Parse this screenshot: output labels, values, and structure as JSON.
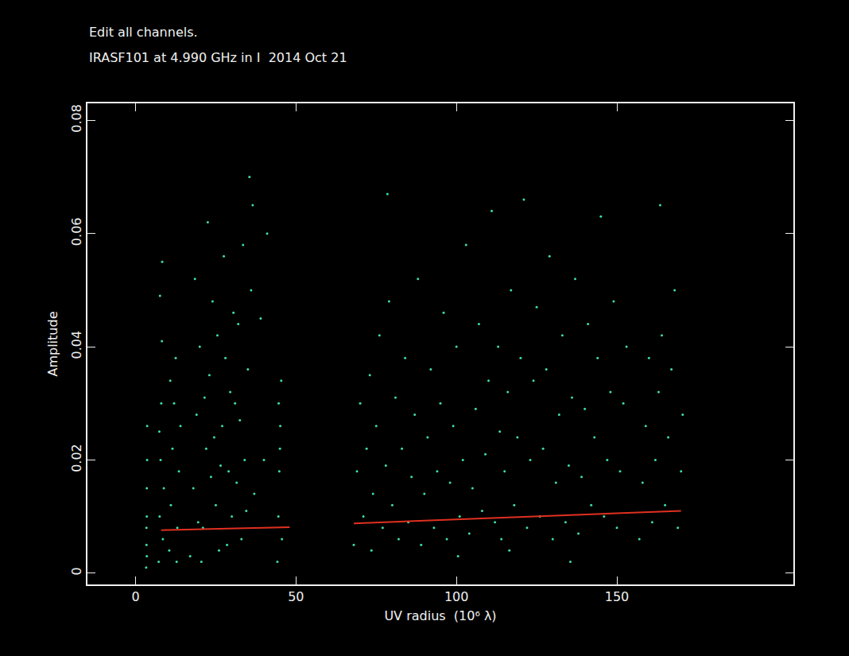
{
  "chart_data": {
    "type": "scatter",
    "title": "IRASF101 at 4.990 GHz in I  2014 Oct 21",
    "annotations": [
      "Edit all channels."
    ],
    "x_label": "UV radius  (10⁶ λ)",
    "y_label": "Amplitude",
    "xlim": [
      -15,
      205
    ],
    "ylim": [
      -0.002,
      0.083
    ],
    "xticks": [
      0,
      50,
      100,
      150
    ],
    "yticks": [
      0,
      0.02,
      0.04,
      0.06,
      0.08
    ],
    "grid": false,
    "series": [
      {
        "type": "scatter",
        "marker": "dot",
        "color": "#3fe0a8",
        "x": [
          3.3,
          3.4,
          3.5,
          3.5,
          3.6,
          3.6,
          3.4,
          3.5,
          7.2,
          7.5,
          7.8,
          8.0,
          8.2,
          8.5,
          7.6,
          8.8,
          7.4,
          8.3,
          10.5,
          11,
          11.5,
          12,
          12.5,
          13,
          13.5,
          14,
          10.8,
          12.8,
          17,
          18,
          19,
          20,
          21,
          22,
          23,
          24,
          25,
          26,
          27,
          28,
          29,
          30,
          31,
          32,
          33,
          34,
          35,
          36,
          37,
          18.5,
          22.5,
          27.5,
          33.5,
          35.5,
          36.5,
          20.5,
          24.5,
          29.5,
          31.5,
          25.5,
          19.5,
          23.5,
          28.5,
          34.5,
          30.5,
          21.5,
          26.5,
          32.5,
          40,
          41,
          39,
          44.2,
          44.5,
          44.8,
          45.1,
          45.4,
          45.6,
          45.0,
          44.6,
          68,
          69,
          70,
          71,
          72,
          73,
          73.5,
          74,
          75,
          76,
          77,
          78,
          79,
          80,
          81,
          82,
          83,
          84,
          85,
          86,
          87,
          88,
          89,
          90,
          91,
          92,
          93,
          94,
          95,
          96,
          97,
          98,
          99,
          100,
          101,
          102,
          103,
          104,
          105,
          106,
          107,
          108,
          109,
          110,
          111,
          112,
          113,
          113.5,
          114,
          115,
          116,
          117,
          118,
          119,
          120,
          121,
          122,
          123,
          124,
          125,
          126,
          127,
          128,
          129,
          130,
          131,
          132,
          133,
          134,
          135,
          136,
          137,
          138,
          139,
          140,
          141,
          142,
          143,
          144,
          145,
          146,
          147,
          148,
          149,
          150,
          151,
          152,
          153,
          157,
          158,
          159,
          160,
          161,
          162,
          163,
          164,
          165,
          166,
          167,
          168,
          169,
          170,
          163.5,
          170.5,
          135.5,
          100.5,
          116.5,
          78.5
        ],
        "values": [
          0.001,
          0.005,
          0.01,
          0.015,
          0.02,
          0.026,
          0.008,
          0.003,
          0.002,
          0.01,
          0.02,
          0.03,
          0.041,
          0.006,
          0.049,
          0.015,
          0.025,
          0.055,
          0.004,
          0.012,
          0.022,
          0.03,
          0.038,
          0.008,
          0.018,
          0.026,
          0.034,
          0.002,
          0.003,
          0.015,
          0.028,
          0.04,
          0.008,
          0.022,
          0.035,
          0.048,
          0.012,
          0.004,
          0.026,
          0.038,
          0.018,
          0.01,
          0.03,
          0.044,
          0.006,
          0.02,
          0.036,
          0.05,
          0.014,
          0.052,
          0.062,
          0.056,
          0.058,
          0.07,
          0.065,
          0.002,
          0.024,
          0.032,
          0.016,
          0.042,
          0.009,
          0.017,
          0.005,
          0.011,
          0.046,
          0.031,
          0.019,
          0.027,
          0.02,
          0.06,
          0.045,
          0.002,
          0.01,
          0.018,
          0.026,
          0.034,
          0.006,
          0.022,
          0.03,
          0.005,
          0.018,
          0.03,
          0.01,
          0.022,
          0.035,
          0.004,
          0.014,
          0.026,
          0.042,
          0.008,
          0.019,
          0.048,
          0.012,
          0.031,
          0.006,
          0.022,
          0.038,
          0.009,
          0.017,
          0.028,
          0.052,
          0.005,
          0.014,
          0.024,
          0.036,
          0.008,
          0.018,
          0.03,
          0.046,
          0.006,
          0.016,
          0.026,
          0.04,
          0.01,
          0.02,
          0.058,
          0.007,
          0.015,
          0.029,
          0.044,
          0.011,
          0.021,
          0.034,
          0.064,
          0.009,
          0.04,
          0.025,
          0.006,
          0.018,
          0.032,
          0.05,
          0.012,
          0.024,
          0.038,
          0.066,
          0.008,
          0.02,
          0.034,
          0.047,
          0.01,
          0.022,
          0.036,
          0.056,
          0.006,
          0.016,
          0.028,
          0.042,
          0.009,
          0.019,
          0.031,
          0.052,
          0.007,
          0.017,
          0.029,
          0.044,
          0.012,
          0.024,
          0.038,
          0.063,
          0.01,
          0.02,
          0.032,
          0.048,
          0.008,
          0.018,
          0.03,
          0.04,
          0.006,
          0.016,
          0.026,
          0.038,
          0.009,
          0.02,
          0.032,
          0.042,
          0.012,
          0.024,
          0.036,
          0.05,
          0.008,
          0.018,
          0.065,
          0.028,
          0.002,
          0.003,
          0.004,
          0.067
        ]
      },
      {
        "type": "line",
        "line_style": "solid",
        "color": "#e03020",
        "x": [
          8,
          48,
          58,
          68,
          170
        ],
        "values": [
          0.0076,
          0.0081,
          null,
          0.0088,
          0.011
        ]
      }
    ]
  }
}
